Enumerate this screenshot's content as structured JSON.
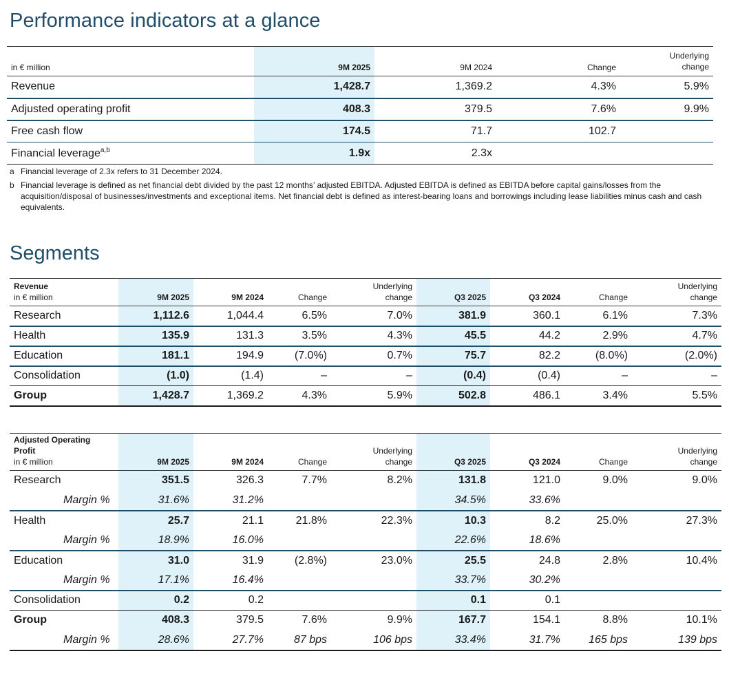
{
  "title": "Performance indicators at a glance",
  "kpi": {
    "unit_label": "in € million",
    "columns": [
      "9M 2025",
      "9M 2024",
      "Change",
      "Underlying",
      "change"
    ],
    "rows": [
      {
        "label": "Revenue",
        "v1": "1,428.7",
        "v2": "1,369.2",
        "chg": "4.3%",
        "und": "5.9%"
      },
      {
        "label": "Adjusted operating profit",
        "v1": "408.3",
        "v2": "379.5",
        "chg": "7.6%",
        "und": "9.9%"
      },
      {
        "label": "Free cash flow",
        "v1": "174.5",
        "v2": "71.7",
        "chg": "102.7",
        "und": ""
      },
      {
        "label": "Financial leverage",
        "sup": "a,b",
        "v1": "1.9x",
        "v2": "2.3x",
        "chg": "",
        "und": ""
      }
    ],
    "footnotes": [
      {
        "key": "a",
        "text": "Financial leverage of 2.3x refers to 31 December 2024."
      },
      {
        "key": "b",
        "text": "Financial leverage is defined as net financial debt divided by the past 12 months’ adjusted EBITDA. Adjusted EBITDA is defined as EBITDA before capital gains/losses from the acquisition/disposal of businesses/investments and exceptional items. Net financial debt is defined as interest-bearing loans and borrowings including lease liabilities minus cash and cash equivalents."
      }
    ]
  },
  "segments_title": "Segments",
  "revenue": {
    "header_title": "Revenue",
    "unit_label": "in € million",
    "columns": [
      "9M 2025",
      "9M 2024",
      "Change",
      "Underlying",
      "change",
      "Q3 2025",
      "Q3 2024",
      "Change",
      "Underlying",
      "change"
    ],
    "rows": [
      {
        "label": "Research",
        "c": [
          "1,112.6",
          "1,044.4",
          "6.5%",
          "7.0%",
          "381.9",
          "360.1",
          "6.1%",
          "7.3%"
        ]
      },
      {
        "label": "Health",
        "c": [
          "135.9",
          "131.3",
          "3.5%",
          "4.3%",
          "45.5",
          "44.2",
          "2.9%",
          "4.7%"
        ]
      },
      {
        "label": "Education",
        "c": [
          "181.1",
          "194.9",
          "(7.0%)",
          "0.7%",
          "75.7",
          "82.2",
          "(8.0%)",
          "(2.0%)"
        ]
      },
      {
        "label": "Consolidation",
        "c": [
          "(1.0)",
          "(1.4)",
          "–",
          "–",
          "(0.4)",
          "(0.4)",
          "–",
          "–"
        ]
      },
      {
        "label": "Group",
        "c": [
          "1,428.7",
          "1,369.2",
          "4.3%",
          "5.9%",
          "502.8",
          "486.1",
          "3.4%",
          "5.5%"
        ]
      }
    ]
  },
  "aop": {
    "header_title_1": "Adjusted Operating",
    "header_title_2": "Profit",
    "unit_label": "in € million",
    "margin_label": "Margin %",
    "rows": [
      {
        "label": "Research",
        "c": [
          "351.5",
          "326.3",
          "7.7%",
          "8.2%",
          "131.8",
          "121.0",
          "9.0%",
          "9.0%"
        ]
      },
      {
        "label": "Margin %",
        "c": [
          "31.6%",
          "31.2%",
          "",
          "",
          "34.5%",
          "33.6%",
          "",
          ""
        ]
      },
      {
        "label": "Health",
        "c": [
          "25.7",
          "21.1",
          "21.8%",
          "22.3%",
          "10.3",
          "8.2",
          "25.0%",
          "27.3%"
        ]
      },
      {
        "label": "Margin %",
        "c": [
          "18.9%",
          "16.0%",
          "",
          "",
          "22.6%",
          "18.6%",
          "",
          ""
        ]
      },
      {
        "label": "Education",
        "c": [
          "31.0",
          "31.9",
          "(2.8%)",
          "23.0%",
          "25.5",
          "24.8",
          "2.8%",
          "10.4%"
        ]
      },
      {
        "label": "Margin %",
        "c": [
          "17.1%",
          "16.4%",
          "",
          "",
          "33.7%",
          "30.2%",
          "",
          ""
        ]
      },
      {
        "label": "Consolidation",
        "c": [
          "0.2",
          "0.2",
          "",
          "",
          "0.1",
          "0.1",
          "",
          ""
        ]
      },
      {
        "label": "Group",
        "c": [
          "408.3",
          "379.5",
          "7.6%",
          "9.9%",
          "167.7",
          "154.1",
          "8.8%",
          "10.1%"
        ]
      },
      {
        "label": "Margin %",
        "c": [
          "28.6%",
          "27.7%",
          "87 bps",
          "106 bps",
          "33.4%",
          "31.7%",
          "165 bps",
          "139 bps"
        ]
      }
    ]
  }
}
